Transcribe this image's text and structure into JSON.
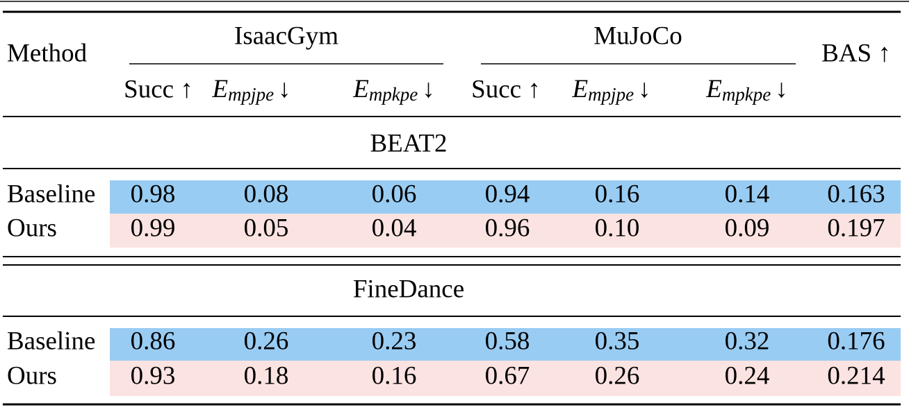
{
  "table": {
    "method_header": "Method",
    "groups": [
      {
        "name": "IsaacGym"
      },
      {
        "name": "MuJoCo"
      }
    ],
    "bas_header": "BAS ↑",
    "subheaders": [
      {
        "text": "Succ ↑"
      },
      {
        "symbol": "E",
        "subscript": "mpjpe",
        "arrow": "↓"
      },
      {
        "symbol": "E",
        "subscript": "mpkpe",
        "arrow": "↓"
      },
      {
        "text": "Succ ↑"
      },
      {
        "symbol": "E",
        "subscript": "mpjpe",
        "arrow": "↓"
      },
      {
        "symbol": "E",
        "subscript": "mpkpe",
        "arrow": "↓"
      }
    ],
    "sections": [
      {
        "title": "BEAT2",
        "rows": [
          {
            "method": "Baseline",
            "values": [
              "0.98",
              "0.08",
              "0.06",
              "0.94",
              "0.16",
              "0.14",
              "0.163"
            ]
          },
          {
            "method": "Ours",
            "values": [
              "0.99",
              "0.05",
              "0.04",
              "0.96",
              "0.10",
              "0.09",
              "0.197"
            ]
          }
        ]
      },
      {
        "title": "FineDance",
        "rows": [
          {
            "method": "Baseline",
            "values": [
              "0.86",
              "0.26",
              "0.23",
              "0.58",
              "0.35",
              "0.32",
              "0.176"
            ]
          },
          {
            "method": "Ours",
            "values": [
              "0.93",
              "0.18",
              "0.16",
              "0.67",
              "0.26",
              "0.24",
              "0.214"
            ]
          }
        ]
      }
    ]
  }
}
